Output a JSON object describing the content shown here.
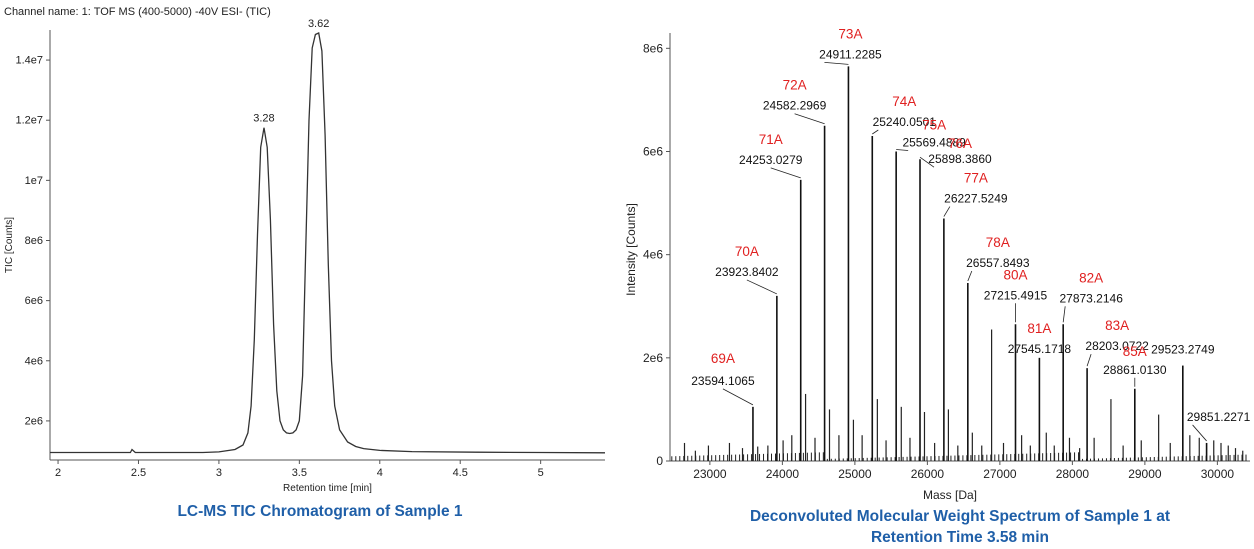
{
  "chart_data": [
    {
      "type": "line",
      "header": "Channel name: 1: TOF MS (400-5000) -40V ESI- (TIC)",
      "xlabel": "Retention time [min]",
      "ylabel": "TIC [Counts]",
      "xlim": [
        1.95,
        5.4
      ],
      "ylim": [
        700000,
        15000000
      ],
      "xticks": [
        2,
        2.5,
        3,
        3.5,
        4,
        4.5,
        5
      ],
      "xtick_labels": [
        "2",
        "2.5",
        "3",
        "3.5",
        "4",
        "4.5",
        "5"
      ],
      "yticks": [
        2000000,
        4000000,
        6000000,
        8000000,
        10000000,
        12000000,
        14000000
      ],
      "ytick_labels": [
        "2e6",
        "4e6",
        "6e6",
        "8e6",
        "1e7",
        "1.2e7",
        "1.4e7"
      ],
      "peaks": [
        {
          "x": 3.28,
          "label": "3.28",
          "y": 11750000
        },
        {
          "x": 3.62,
          "label": "3.62",
          "y": 14900000
        }
      ],
      "series": [
        {
          "x": [
            1.95,
            2.2,
            2.45,
            2.46,
            2.48,
            2.7,
            2.9,
            3.0,
            3.1,
            3.15,
            3.18,
            3.2,
            3.22,
            3.24,
            3.26,
            3.28,
            3.3,
            3.32,
            3.34,
            3.36,
            3.38,
            3.4,
            3.42,
            3.44,
            3.46,
            3.48,
            3.5,
            3.52,
            3.54,
            3.56,
            3.58,
            3.6,
            3.62,
            3.64,
            3.66,
            3.68,
            3.7,
            3.72,
            3.75,
            3.8,
            3.85,
            3.9,
            4.0,
            4.2,
            4.6,
            5.0,
            5.4
          ],
          "y": [
            950000,
            950000,
            950000,
            1050000,
            950000,
            950000,
            950000,
            970000,
            1050000,
            1200000,
            1600000,
            2500000,
            4700000,
            8200000,
            11100000,
            11750000,
            11100000,
            8700000,
            5200000,
            3000000,
            2000000,
            1700000,
            1600000,
            1580000,
            1600000,
            1700000,
            2000000,
            3500000,
            7800000,
            12000000,
            14400000,
            14850000,
            14900000,
            14300000,
            11500000,
            7200000,
            4000000,
            2500000,
            1700000,
            1300000,
            1150000,
            1080000,
            1020000,
            980000,
            960000,
            950000,
            940000
          ]
        }
      ],
      "caption": "LC-MS TIC Chromatogram of Sample 1"
    },
    {
      "type": "bar",
      "xlabel": "Mass [Da]",
      "ylabel": "Intensity [Counts]",
      "xlim": [
        22450,
        30450
      ],
      "ylim": [
        0,
        8200000
      ],
      "xticks": [
        23000,
        24000,
        25000,
        26000,
        27000,
        28000,
        29000,
        30000
      ],
      "xtick_labels": [
        "23000",
        "24000",
        "25000",
        "26000",
        "27000",
        "28000",
        "29000",
        "30000"
      ],
      "yticks": [
        0,
        2000000,
        4000000,
        6000000,
        8000000
      ],
      "ytick_labels": [
        "0",
        "2e6",
        "4e6",
        "6e6",
        "8e6"
      ],
      "peaks": [
        {
          "tag": "69A",
          "mass": 23594.1065,
          "label": "23594.1065",
          "value": 1050000
        },
        {
          "tag": "70A",
          "mass": 23923.8402,
          "label": "23923.8402",
          "value": 3200000
        },
        {
          "tag": "71A",
          "mass": 24253.0279,
          "label": "24253.0279",
          "value": 5450000
        },
        {
          "tag": "72A",
          "mass": 24582.2969,
          "label": "24582.2969",
          "value": 6500000
        },
        {
          "tag": "73A",
          "mass": 24911.2285,
          "label": "24911.2285",
          "value": 7650000
        },
        {
          "tag": "74A",
          "mass": 25240.0501,
          "label": "25240.0501",
          "value": 6300000
        },
        {
          "tag": "75A",
          "mass": 25569.4889,
          "label": "25569.4889",
          "value": 6000000
        },
        {
          "tag": "76A",
          "mass": 25898.386,
          "label": "25898.3860",
          "value": 5850000
        },
        {
          "tag": "77A",
          "mass": 26227.5249,
          "label": "26227.5249",
          "value": 4700000
        },
        {
          "tag": "78A",
          "mass": 26557.8493,
          "label": "26557.8493",
          "value": 3450000
        },
        {
          "tag": "80A",
          "mass": 27215.4915,
          "label": "27215.4915",
          "value": 2650000
        },
        {
          "tag": "81A",
          "mass": 27545.1718,
          "label": "27545.1718",
          "value": 2000000
        },
        {
          "tag": "82A",
          "mass": 27873.2146,
          "label": "27873.2146",
          "value": 2650000
        },
        {
          "tag": "83A",
          "mass": 28203.0722,
          "label": "28203.0722",
          "value": 1800000
        },
        {
          "tag": "85A",
          "mass": 28861.013,
          "label": "28861.0130",
          "value": 1400000
        },
        {
          "tag": "",
          "mass": 29523.2749,
          "label": "29523.2749",
          "value": 1850000
        },
        {
          "tag": "",
          "mass": 29851.2271,
          "label": "29851.2271",
          "value": 350000
        }
      ],
      "minor_peaks": [
        {
          "mass": 22650,
          "value": 350000
        },
        {
          "mass": 22800,
          "value": 200000
        },
        {
          "mass": 22980,
          "value": 300000
        },
        {
          "mass": 23270,
          "value": 350000
        },
        {
          "mass": 23450,
          "value": 250000
        },
        {
          "mass": 23660,
          "value": 280000
        },
        {
          "mass": 23800,
          "value": 300000
        },
        {
          "mass": 24010,
          "value": 400000
        },
        {
          "mass": 24130,
          "value": 500000
        },
        {
          "mass": 24320,
          "value": 1300000
        },
        {
          "mass": 24450,
          "value": 450000
        },
        {
          "mass": 24650,
          "value": 1000000
        },
        {
          "mass": 24780,
          "value": 500000
        },
        {
          "mass": 24980,
          "value": 800000
        },
        {
          "mass": 25100,
          "value": 500000
        },
        {
          "mass": 25310,
          "value": 1200000
        },
        {
          "mass": 25430,
          "value": 400000
        },
        {
          "mass": 25640,
          "value": 1050000
        },
        {
          "mass": 25760,
          "value": 450000
        },
        {
          "mass": 25960,
          "value": 950000
        },
        {
          "mass": 26100,
          "value": 350000
        },
        {
          "mass": 26290,
          "value": 1000000
        },
        {
          "mass": 26420,
          "value": 300000
        },
        {
          "mass": 26620,
          "value": 550000
        },
        {
          "mass": 26750,
          "value": 300000
        },
        {
          "mass": 26886,
          "value": 2550000
        },
        {
          "mass": 27050,
          "value": 350000
        },
        {
          "mass": 27300,
          "value": 500000
        },
        {
          "mass": 27420,
          "value": 300000
        },
        {
          "mass": 27640,
          "value": 550000
        },
        {
          "mass": 27750,
          "value": 300000
        },
        {
          "mass": 27960,
          "value": 450000
        },
        {
          "mass": 28100,
          "value": 250000
        },
        {
          "mass": 28300,
          "value": 450000
        },
        {
          "mass": 28532,
          "value": 1200000
        },
        {
          "mass": 28700,
          "value": 300000
        },
        {
          "mass": 28950,
          "value": 400000
        },
        {
          "mass": 29190,
          "value": 900000
        },
        {
          "mass": 29350,
          "value": 350000
        },
        {
          "mass": 29620,
          "value": 500000
        },
        {
          "mass": 29750,
          "value": 450000
        },
        {
          "mass": 29950,
          "value": 400000
        },
        {
          "mass": 30050,
          "value": 350000
        },
        {
          "mass": 30150,
          "value": 300000
        },
        {
          "mass": 30250,
          "value": 250000
        },
        {
          "mass": 30350,
          "value": 200000
        }
      ],
      "caption": "Deconvoluted Molecular Weight Spectrum of Sample 1 at Retention Time 3.58 min"
    }
  ]
}
